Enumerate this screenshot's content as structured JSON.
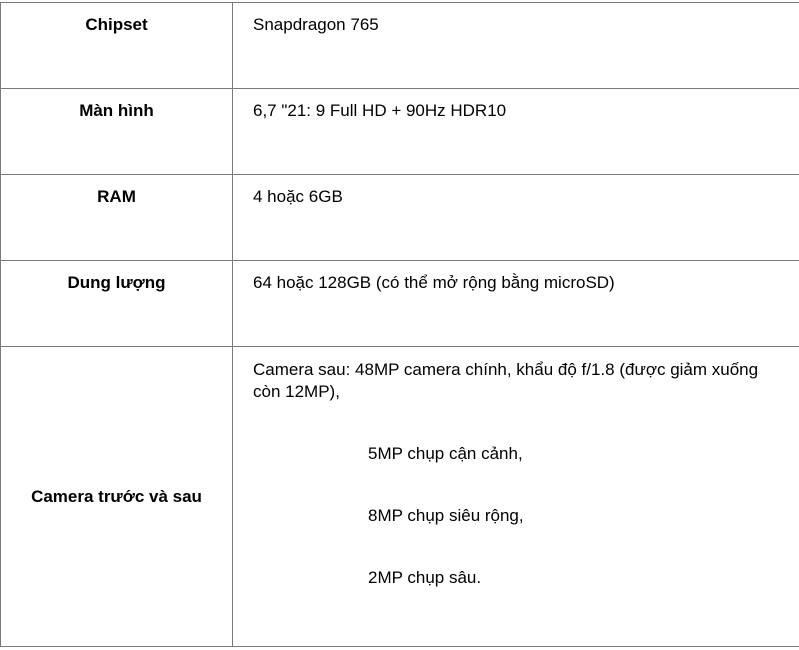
{
  "rows": [
    {
      "label": "Chipset",
      "value": "Snapdragon 765"
    },
    {
      "label": "Màn hình",
      "value": "6,7 \"21: 9 Full HD + 90Hz HDR10"
    },
    {
      "label": "RAM",
      "value": "4 hoặc 6GB"
    },
    {
      "label": "Dung lượng",
      "value": "64 hoặc 128GB (có thể mở rộng bằng microSD)"
    }
  ],
  "camera": {
    "label": "Camera trước và sau",
    "main": "Camera sau: 48MP camera chính, khẩu độ f/1.8 (được giảm xuống còn 12MP),",
    "items": [
      "5MP chụp cận cảnh,",
      "8MP chụp siêu rộng,",
      "2MP chụp sâu."
    ]
  }
}
